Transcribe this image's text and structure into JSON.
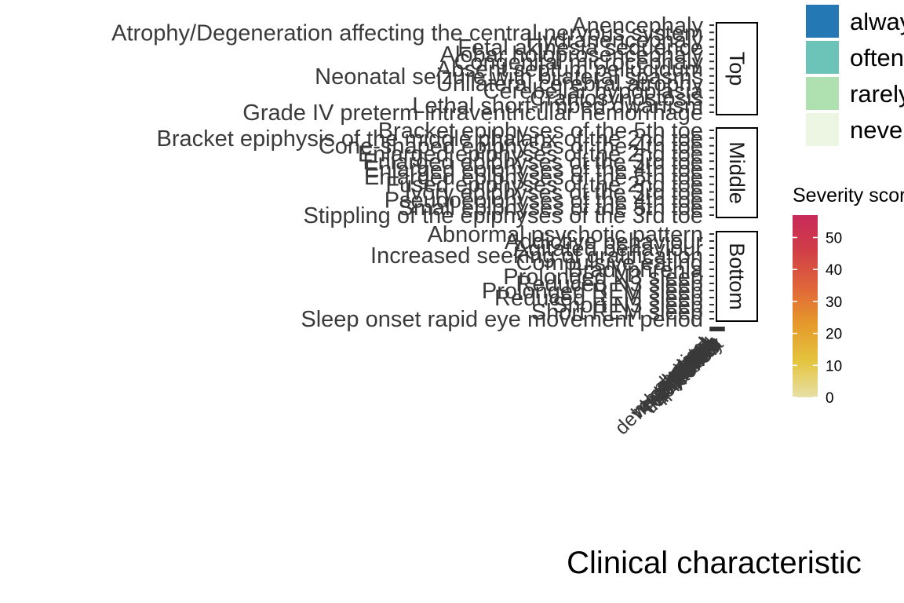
{
  "chart_data": {
    "type": "heatmap",
    "title": "",
    "xlabel": "Clinical characteristic",
    "ylabel": "",
    "x_categories": [
      "physical",
      "skeletal",
      "neuro",
      "seizure",
      "morphology",
      "developmental",
      "cortex",
      "hemorrhage",
      "hypoplasia",
      "brain",
      "spine",
      "lethal",
      "digits",
      "toes",
      "epiphyses",
      "stippling",
      "sleep",
      "psychotic",
      "compulsive",
      "impairment",
      "behaviour",
      "REM",
      "N3",
      "latency",
      "onset"
    ],
    "panels": [
      {
        "name": "Top",
        "rows": [
          "Anencephaly",
          "Atrophy/Degeneration affecting the central nervous system",
          "Hydranencephaly",
          "Fetal akinesia sequence",
          "Alobar holoprosencephaly",
          "Congenital microcephaly",
          "Absent septum pellucidum",
          "Neonatal seizure with bilateral spasms",
          "Unilateral cerebral atrophy",
          "Cerebellar hypoplasia",
          "Craniosynostosis",
          "Lethal short-limbed dwarfism",
          "Grade IV preterm intraventricular hemorrhage"
        ]
      },
      {
        "name": "Middle",
        "rows": [
          "Bracket epiphyses of the 5th toe",
          "Bracket epiphysis of the middle phalanx of the 2nd toe",
          "Cone-shaped epiphyses of the 4th toe",
          "Enlarged epiphyses of the 2nd toe",
          "Enlarged epiphyses of the 3rd toe",
          "Enlarged epiphyses of the 4th toe",
          "Enlarged epiphyses of the 5th toe",
          "Fused epiphyses of the 2nd toe",
          "Ivory epiphyses of the 3rd toe",
          "Pseudoepiphyses of the 4th toe",
          "Small epiphyses of the 5th toe",
          "Stippling of the epiphyses of the 3rd toe"
        ]
      },
      {
        "name": "Bottom",
        "rows": [
          "Abnormal psychotic pattern",
          "Addictive behaviour",
          "Agitated behaviour",
          "Increased seeking of gratification",
          "Compulsive eating",
          "Bradyphrenia",
          "Prolonged N3 sleep",
          "Reduced N3 sleep",
          "Prolonged REM sleep",
          "Reduced REM sleep",
          "Short N3 sleep",
          "Short REM sleep",
          "Sleep onset rapid eye movement period"
        ]
      }
    ],
    "legend_frequency": {
      "title": "",
      "placement": "right",
      "entries": [
        {
          "label": "always",
          "color": "#2478b4"
        },
        {
          "label": "often",
          "color": "#6cc4b8"
        },
        {
          "label": "rarely",
          "color": "#aee0b0"
        },
        {
          "label": "never",
          "color": "#ecf6e2"
        }
      ]
    },
    "legend_severity": {
      "title": "Severity score",
      "placement": "right",
      "range": [
        0,
        57
      ],
      "ticks": [
        0,
        10,
        20,
        30,
        40,
        50
      ],
      "gradient": [
        "#e7e0a6",
        "#e4c43e",
        "#e59a2a",
        "#e0663a",
        "#d13f46",
        "#c8295a"
      ]
    },
    "grid": false
  }
}
